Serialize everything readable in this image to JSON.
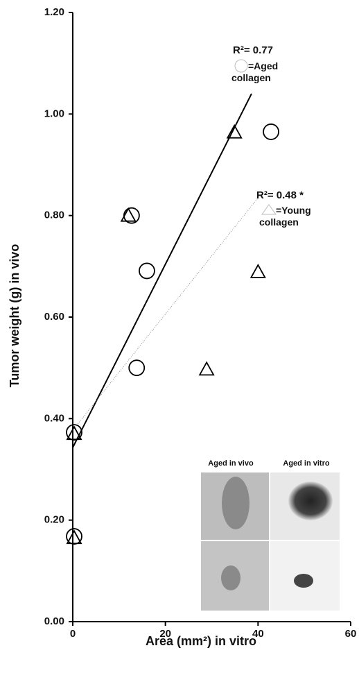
{
  "chart_data": {
    "type": "scatter",
    "xlabel": "Area (mm²) in vitro",
    "ylabel": "Tumor weight (g) in vivo",
    "xlim": [
      0,
      60
    ],
    "xticks": [
      0,
      20,
      40,
      60
    ],
    "ylim": [
      0,
      1.2
    ],
    "yticks": [
      {
        "value": 0,
        "label": "0.00"
      },
      {
        "value": 0.2,
        "label": "0.20"
      },
      {
        "value": 0.4,
        "label": "0.40"
      },
      {
        "value": 0.6,
        "label": "0.60"
      },
      {
        "value": 0.8,
        "label": "0.80"
      },
      {
        "value": 1.0,
        "label": "1.00"
      },
      {
        "value": 1.2,
        "label": "1.20"
      }
    ],
    "series": [
      {
        "name": "=Aged collagen",
        "marker": "circle",
        "color": "#000000",
        "r2_label": "R²= 0.77",
        "x": [
          0,
          0,
          13.8,
          16.0,
          12.7,
          42.8
        ],
        "values": [
          0.373,
          0.168,
          0.5,
          0.691,
          0.8,
          0.965
        ],
        "trend": {
          "style": "solid",
          "x": [
            0,
            38.6
          ],
          "y": [
            0.343,
            1.04
          ]
        }
      },
      {
        "name": "=Young collagen",
        "marker": "triangle",
        "color": "#000000",
        "r2_label": "R²= 0.48 *",
        "x": [
          0,
          0,
          12.0,
          28.9,
          40.0,
          34.9
        ],
        "values": [
          0.37,
          0.165,
          0.8,
          0.497,
          0.689,
          0.964
        ],
        "trend": {
          "style": "dotted",
          "x": [
            0,
            40
          ],
          "y": [
            0.377,
            0.835
          ]
        }
      }
    ],
    "inset": {
      "labels": [
        "Aged in vivo",
        "Aged in vitro"
      ]
    }
  }
}
